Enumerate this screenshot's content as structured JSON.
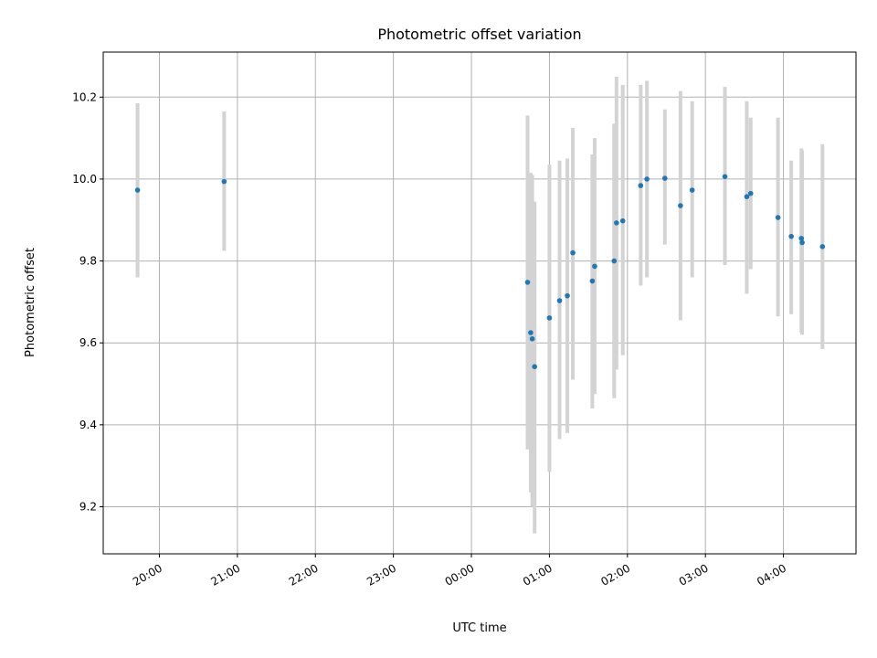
{
  "chart_data": {
    "type": "scatter",
    "title": "Photometric offset variation",
    "xlabel": "UTC time",
    "ylabel": "Photometric offset",
    "x_ticks": [
      "20:00",
      "21:00",
      "22:00",
      "23:00",
      "00:00",
      "01:00",
      "02:00",
      "03:00",
      "04:00"
    ],
    "x_tick_hours": [
      20,
      21,
      22,
      23,
      24,
      25,
      26,
      27,
      28
    ],
    "xlim_hours": [
      19.28,
      28.93
    ],
    "y_ticks": [
      9.2,
      9.4,
      9.6,
      9.8,
      10.0,
      10.2
    ],
    "y_tick_labels": [
      "9.2",
      "9.4",
      "9.6",
      "9.8",
      "10.0",
      "10.2"
    ],
    "ylim": [
      9.085,
      10.31
    ],
    "grid": true,
    "point_color": "#1f77b4",
    "errorbar_color": "#d3d3d3",
    "series": [
      {
        "x_hours": [
          19.72,
          20.83,
          24.72,
          24.76,
          24.78,
          24.81,
          25.0,
          25.13,
          25.23,
          25.3,
          25.55,
          25.58,
          25.83,
          25.86,
          25.94,
          26.17,
          26.25,
          26.48,
          26.68,
          26.83,
          27.25,
          27.53,
          27.58,
          27.93,
          28.1,
          28.23,
          28.24,
          28.5
        ],
        "y": [
          9.973,
          9.994,
          9.748,
          9.625,
          9.61,
          9.542,
          9.661,
          9.703,
          9.715,
          9.82,
          9.751,
          9.787,
          9.8,
          9.893,
          9.898,
          9.984,
          10.0,
          10.002,
          9.935,
          9.973,
          10.006,
          9.957,
          9.965,
          9.906,
          9.86,
          9.855,
          9.845,
          9.835
        ],
        "y_lower": [
          9.76,
          9.825,
          9.34,
          9.235,
          9.2,
          9.135,
          9.285,
          9.365,
          9.38,
          9.51,
          9.44,
          9.475,
          9.465,
          9.535,
          9.57,
          9.74,
          9.76,
          9.84,
          9.655,
          9.76,
          9.79,
          9.72,
          9.78,
          9.665,
          9.67,
          9.625,
          9.62,
          9.585
        ],
        "y_upper": [
          10.185,
          10.165,
          10.155,
          10.015,
          10.01,
          9.945,
          10.035,
          10.045,
          10.05,
          10.125,
          10.06,
          10.1,
          10.135,
          10.25,
          10.23,
          10.23,
          10.24,
          10.17,
          10.215,
          10.19,
          10.225,
          10.19,
          10.15,
          10.15,
          10.045,
          10.075,
          10.07,
          10.085
        ]
      }
    ]
  }
}
